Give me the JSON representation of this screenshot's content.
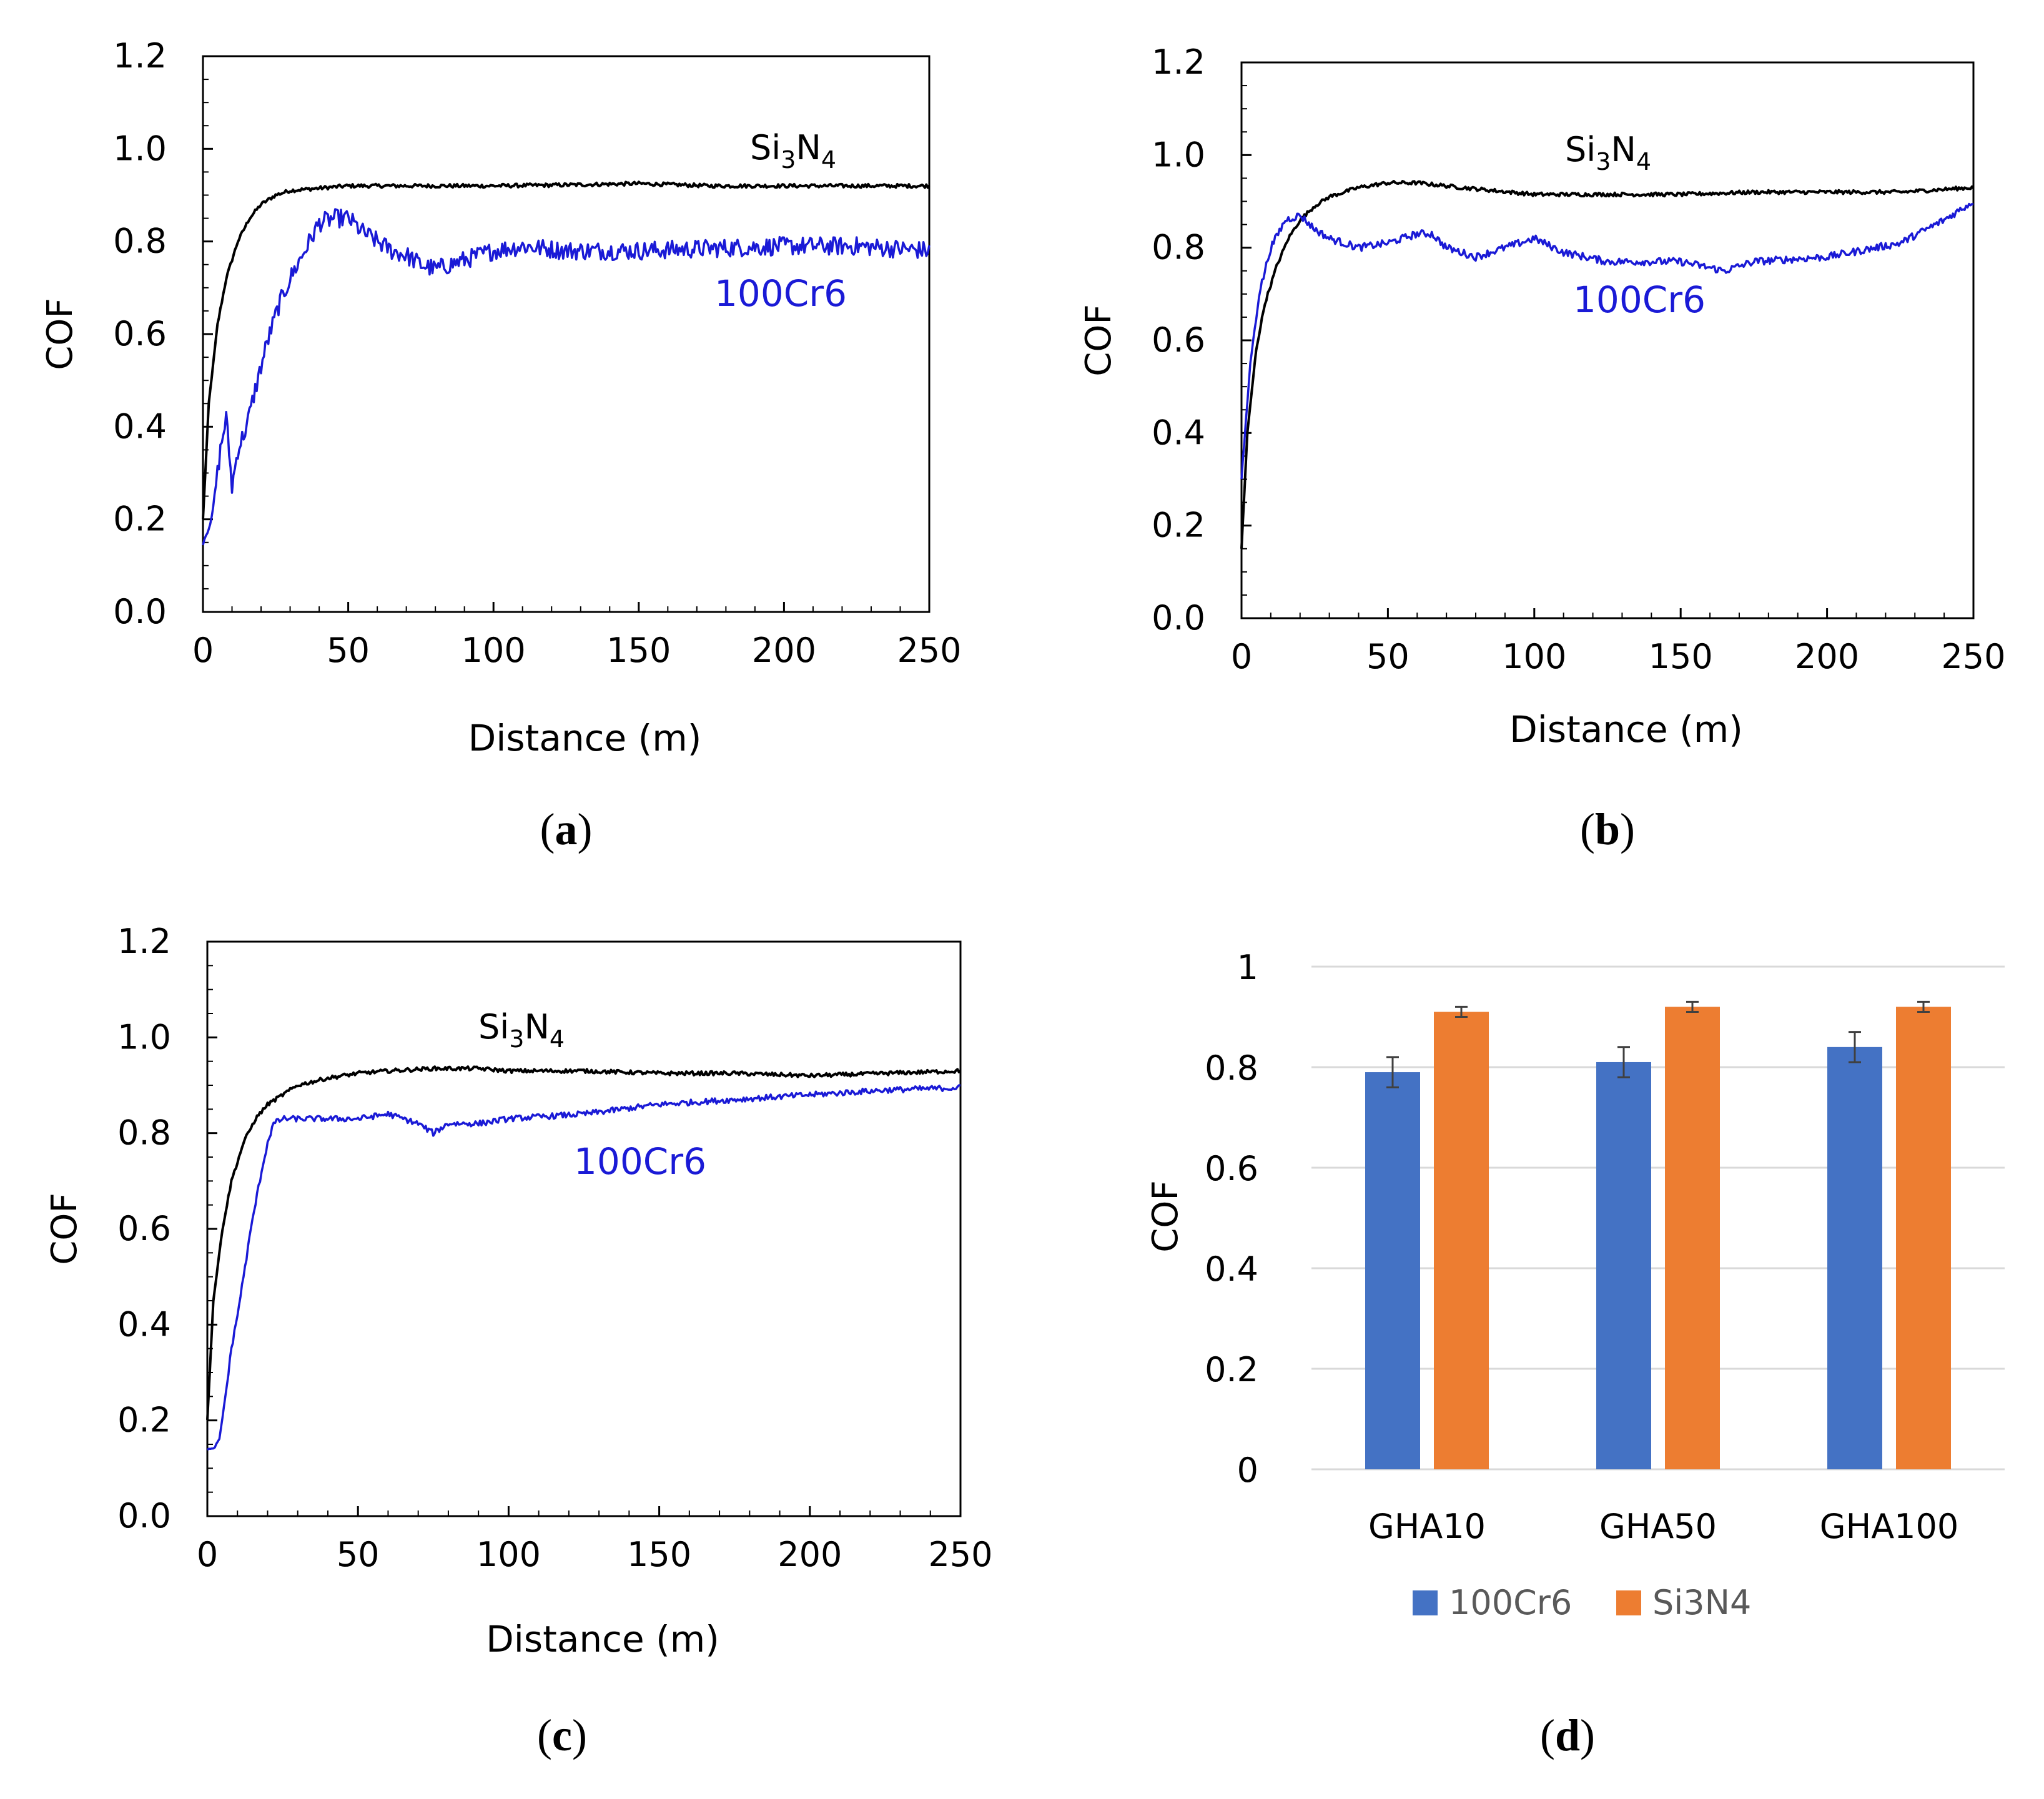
{
  "figure": {
    "panels": [
      "(a)",
      "(b)",
      "(c)",
      "(d)"
    ]
  },
  "colors": {
    "si3n4_line": "#000000",
    "cr6_line": "#1a1ad6",
    "bar_100cr6": "#4472c4",
    "bar_si3n4": "#ed7d31",
    "grid": "#d9d9d9",
    "axis_text": "#000000",
    "legend_text": "#595959"
  },
  "chart_data": [
    {
      "panel": "(a)",
      "type": "line",
      "xlabel": "Distance (m)",
      "ylabel": "COF",
      "xlim": [
        0,
        250
      ],
      "ylim": [
        0,
        1.2
      ],
      "xticks": [
        "0",
        "50",
        "100",
        "150",
        "200",
        "250"
      ],
      "yticks": [
        "0.0",
        "0.2",
        "0.4",
        "0.6",
        "0.8",
        "1.0",
        "1.2"
      ],
      "annotations": [
        {
          "text": "Si",
          "sub1": "3",
          "mid": "N",
          "sub2": "4",
          "series": "Si3N4"
        },
        {
          "text": "100Cr6",
          "series": "100Cr6"
        }
      ],
      "series": [
        {
          "name": "Si3N4",
          "x": [
            0,
            2,
            5,
            8,
            12,
            16,
            20,
            25,
            30,
            40,
            50,
            60,
            75,
            100,
            125,
            150,
            175,
            200,
            225,
            250
          ],
          "values": [
            0.2,
            0.45,
            0.62,
            0.72,
            0.8,
            0.85,
            0.88,
            0.9,
            0.91,
            0.915,
            0.92,
            0.92,
            0.92,
            0.92,
            0.922,
            0.925,
            0.92,
            0.92,
            0.92,
            0.92
          ],
          "noise": 0.004
        },
        {
          "name": "100Cr6",
          "x": [
            0,
            3,
            6,
            8,
            10,
            12,
            15,
            18,
            22,
            26,
            30,
            35,
            40,
            45,
            50,
            55,
            60,
            65,
            70,
            75,
            80,
            90,
            100,
            110,
            125,
            150,
            175,
            200,
            225,
            250
          ],
          "values": [
            0.15,
            0.2,
            0.35,
            0.42,
            0.27,
            0.35,
            0.4,
            0.48,
            0.58,
            0.66,
            0.72,
            0.78,
            0.84,
            0.85,
            0.85,
            0.82,
            0.8,
            0.78,
            0.77,
            0.75,
            0.74,
            0.76,
            0.78,
            0.79,
            0.78,
            0.78,
            0.785,
            0.79,
            0.79,
            0.78
          ],
          "noise": 0.02
        }
      ]
    },
    {
      "panel": "(b)",
      "type": "line",
      "xlabel": "Distance (m)",
      "ylabel": "COF",
      "xlim": [
        0,
        250
      ],
      "ylim": [
        0,
        1.2
      ],
      "xticks": [
        "0",
        "50",
        "100",
        "150",
        "200",
        "250"
      ],
      "yticks": [
        "0.0",
        "0.2",
        "0.4",
        "0.6",
        "0.8",
        "1.0",
        "1.2"
      ],
      "annotations": [
        {
          "text": "Si",
          "sub1": "3",
          "mid": "N",
          "sub2": "4",
          "series": "Si3N4"
        },
        {
          "text": "100Cr6",
          "series": "100Cr6"
        }
      ],
      "series": [
        {
          "name": "Si3N4",
          "x": [
            0,
            2,
            5,
            8,
            12,
            16,
            20,
            25,
            30,
            40,
            50,
            60,
            75,
            100,
            125,
            150,
            175,
            200,
            225,
            250
          ],
          "values": [
            0.15,
            0.4,
            0.58,
            0.68,
            0.76,
            0.82,
            0.86,
            0.89,
            0.91,
            0.93,
            0.94,
            0.94,
            0.93,
            0.915,
            0.915,
            0.915,
            0.92,
            0.92,
            0.92,
            0.93
          ],
          "noise": 0.004
        },
        {
          "name": "100Cr6",
          "x": [
            0,
            3,
            6,
            10,
            15,
            20,
            25,
            30,
            40,
            50,
            60,
            65,
            70,
            80,
            90,
            100,
            110,
            125,
            150,
            165,
            175,
            200,
            225,
            240,
            250
          ],
          "values": [
            0.3,
            0.55,
            0.7,
            0.8,
            0.86,
            0.87,
            0.84,
            0.82,
            0.8,
            0.81,
            0.83,
            0.83,
            0.8,
            0.78,
            0.8,
            0.82,
            0.79,
            0.77,
            0.77,
            0.75,
            0.77,
            0.78,
            0.81,
            0.86,
            0.9
          ],
          "noise": 0.008
        }
      ]
    },
    {
      "panel": "(c)",
      "type": "line",
      "xlabel": "Distance (m)",
      "ylabel": "COF",
      "xlim": [
        0,
        250
      ],
      "ylim": [
        0,
        1.2
      ],
      "xticks": [
        "0",
        "50",
        "100",
        "150",
        "200",
        "250"
      ],
      "yticks": [
        "0.0",
        "0.2",
        "0.4",
        "0.6",
        "0.8",
        "1.0",
        "1.2"
      ],
      "annotations": [
        {
          "text": "Si",
          "sub1": "3",
          "mid": "N",
          "sub2": "4",
          "series": "Si3N4"
        },
        {
          "text": "100Cr6",
          "series": "100Cr6"
        }
      ],
      "series": [
        {
          "name": "Si3N4",
          "x": [
            0,
            2,
            5,
            8,
            12,
            16,
            20,
            25,
            30,
            40,
            50,
            60,
            75,
            90,
            100,
            125,
            150,
            175,
            200,
            225,
            250
          ],
          "values": [
            0.2,
            0.45,
            0.6,
            0.7,
            0.78,
            0.83,
            0.86,
            0.88,
            0.9,
            0.915,
            0.925,
            0.93,
            0.935,
            0.935,
            0.93,
            0.93,
            0.925,
            0.925,
            0.92,
            0.925,
            0.93
          ],
          "noise": 0.004
        },
        {
          "name": "100Cr6",
          "x": [
            0,
            2,
            4,
            6,
            8,
            10,
            12,
            15,
            18,
            20,
            22,
            25,
            30,
            40,
            50,
            60,
            70,
            75,
            80,
            90,
            100,
            125,
            150,
            175,
            200,
            225,
            250
          ],
          "values": [
            0.14,
            0.14,
            0.16,
            0.25,
            0.35,
            0.42,
            0.5,
            0.62,
            0.72,
            0.78,
            0.82,
            0.83,
            0.83,
            0.83,
            0.83,
            0.84,
            0.82,
            0.8,
            0.82,
            0.82,
            0.83,
            0.84,
            0.86,
            0.87,
            0.88,
            0.89,
            0.895
          ],
          "noise": 0.006
        }
      ]
    },
    {
      "panel": "(d)",
      "type": "bar",
      "ylabel": "COF",
      "ylim": [
        0,
        1
      ],
      "yticks": [
        "0",
        "0.2",
        "0.4",
        "0.6",
        "0.8",
        "1"
      ],
      "categories": [
        "GHA10",
        "GHA50",
        "GHA100"
      ],
      "series": [
        {
          "name": "100Cr6",
          "values": [
            0.79,
            0.81,
            0.84
          ],
          "errors": [
            0.03,
            0.03,
            0.03
          ]
        },
        {
          "name": "Si3N4",
          "values": [
            0.91,
            0.92,
            0.92
          ],
          "errors": [
            0.01,
            0.01,
            0.01
          ]
        }
      ],
      "legend": [
        "100Cr6",
        "Si3N4"
      ]
    }
  ]
}
